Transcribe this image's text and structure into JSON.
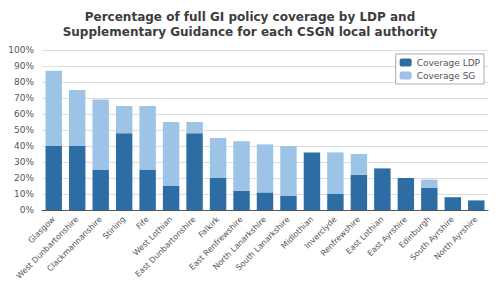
{
  "chart_data": {
    "type": "bar",
    "stacked": true,
    "title": "Percentage of full GI policy coverage by LDP and\nSupplementary Guidance for each CSGN local authority",
    "categories": [
      "Glasgow",
      "West Dunbartonshire",
      "Clackmannanshire",
      "Stirling",
      "Fife",
      "West Lothian",
      "East Dunbartonshire",
      "Falkirk",
      "East Renfrewshire",
      "North Lanarkshire",
      "South Lanarkshire",
      "Midlothian",
      "Inverclyde",
      "Renfrewshire",
      "East Lothian",
      "East Ayrshire",
      "Edinburgh",
      "South Ayrshire",
      "North Ayrshire"
    ],
    "series": [
      {
        "name": "Coverage LDP",
        "color": "#2e6da4",
        "values": [
          40,
          40,
          25,
          48,
          25,
          15,
          48,
          20,
          12,
          11,
          9,
          36,
          10,
          22,
          26,
          20,
          14,
          8,
          6
        ]
      },
      {
        "name": "Coverage SG",
        "color": "#9dc3e6",
        "values": [
          47,
          35,
          44,
          17,
          40,
          40,
          7,
          25,
          31,
          30,
          31,
          0,
          26,
          13,
          0,
          0,
          5,
          0,
          0
        ]
      }
    ],
    "ylim": [
      0,
      100
    ],
    "yticks": [
      {
        "value": 0,
        "label": "0%"
      },
      {
        "value": 10,
        "label": "10%"
      },
      {
        "value": 20,
        "label": "20%"
      },
      {
        "value": 30,
        "label": "30%"
      },
      {
        "value": 40,
        "label": "40%"
      },
      {
        "value": 50,
        "label": "50%"
      },
      {
        "value": 60,
        "label": "60%"
      },
      {
        "value": 70,
        "label": "70%"
      },
      {
        "value": 80,
        "label": "80%"
      },
      {
        "value": 90,
        "label": "90%"
      },
      {
        "value": 100,
        "label": "100%"
      }
    ],
    "grid": true,
    "legend": "upper right"
  }
}
